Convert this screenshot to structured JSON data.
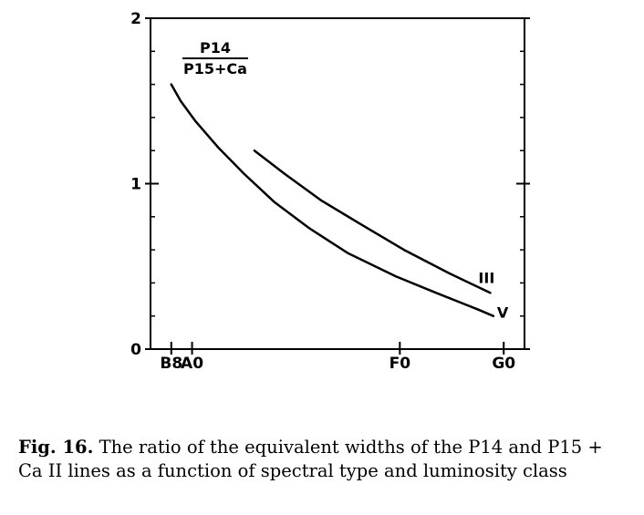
{
  "chart_data": {
    "type": "line",
    "title": "",
    "xlabel": "",
    "ylabel": "",
    "ratio_label": {
      "numerator": "P14",
      "denominator": "P15+Ca"
    },
    "x_ticks": [
      {
        "label": "B8",
        "value": 8
      },
      {
        "label": "A0",
        "value": 10
      },
      {
        "label": "F0",
        "value": 30
      },
      {
        "label": "G0",
        "value": 40
      }
    ],
    "xlim": [
      6,
      42
    ],
    "ylim": [
      0,
      2
    ],
    "y_ticks": [
      {
        "label": "0",
        "value": 0
      },
      {
        "label": "1",
        "value": 1
      },
      {
        "label": "2",
        "value": 2
      }
    ],
    "series": [
      {
        "name": "V",
        "points": [
          [
            8.0,
            1.6
          ],
          [
            8.9,
            1.5
          ],
          [
            10.3,
            1.38
          ],
          [
            12.5,
            1.22
          ],
          [
            15.0,
            1.06
          ],
          [
            17.9,
            0.89
          ],
          [
            21.3,
            0.73
          ],
          [
            25.0,
            0.58
          ],
          [
            29.6,
            0.44
          ],
          [
            33.5,
            0.34
          ],
          [
            37.5,
            0.24
          ],
          [
            39.0,
            0.2
          ]
        ]
      },
      {
        "name": "III",
        "points": [
          [
            16.0,
            1.2
          ],
          [
            18.9,
            1.06
          ],
          [
            22.4,
            0.9
          ],
          [
            26.1,
            0.76
          ],
          [
            30.4,
            0.6
          ],
          [
            34.7,
            0.46
          ],
          [
            38.7,
            0.34
          ]
        ]
      }
    ]
  },
  "caption": {
    "label": "Fig. 16.",
    "text": " The ratio of the equivalent widths of the P14 and P15 + Ca II lines as a function of spectral type and luminosity class"
  }
}
